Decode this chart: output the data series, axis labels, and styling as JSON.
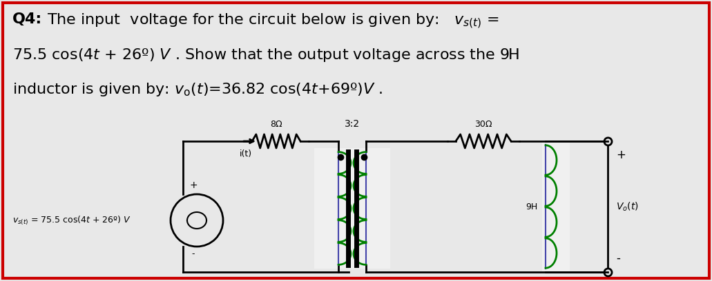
{
  "background_color": "#e8e8e8",
  "border_color": "#cc0000",
  "border_linewidth": 3,
  "coil_color": "#00aa00",
  "wire_color": "#4444aa",
  "black": "#000000",
  "white_bg": "#ffffff",
  "text": {
    "line1_bold": "Q4:",
    "line1_rest": "The input  voltage for the circuit below is given by:   $v_{s(t)}$ =",
    "line2": "75.5 cos(4$t$ + 26º) $V$ . Show that the output voltage across the 9H",
    "line3": "$v_{\\mathrm{o}}(t)$=36.82 cos(4$t$+69º)$V$ .",
    "line3_prefix": "inductor is given by: "
  },
  "src_label": "$v_{s(t)}$ = 75.5 cos(4$t$ + 26º) $V$",
  "res1_label": "8Ω",
  "res2_label": "30Ω",
  "transformer_label": "3:2",
  "inductor_label": "9H",
  "current_label": "i(t)",
  "output_plus": "+",
  "output_minus": "-",
  "output_label": "$V_{o}(t)$"
}
